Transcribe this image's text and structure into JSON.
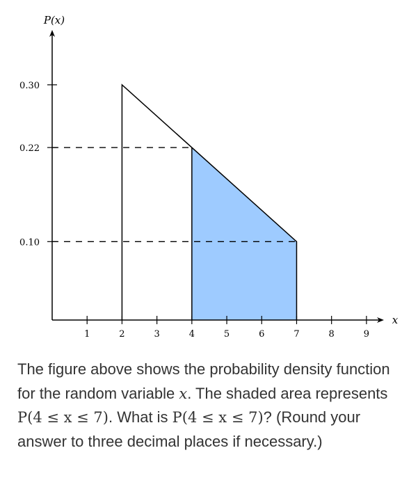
{
  "chart_data": {
    "type": "area",
    "xlabel": "x",
    "ylabel": "P(x)",
    "x_ticks": [
      1,
      2,
      3,
      4,
      5,
      6,
      7,
      8,
      9
    ],
    "y_ticks": [
      0.1,
      0.22,
      0.3
    ],
    "y_tick_labels": [
      "0.10",
      "0.22",
      "0.30"
    ],
    "xlim": [
      0,
      9.5
    ],
    "ylim": [
      0,
      0.37
    ],
    "density_outline": [
      {
        "x": 2,
        "y": 0
      },
      {
        "x": 2,
        "y": 0.3
      },
      {
        "x": 7,
        "y": 0.1
      },
      {
        "x": 7,
        "y": 0
      }
    ],
    "shaded_region": {
      "x_from": 4,
      "x_to": 7,
      "points": [
        {
          "x": 4,
          "y": 0.22
        },
        {
          "x": 7,
          "y": 0.1
        }
      ]
    },
    "reference_lines": [
      {
        "y": 0.22,
        "x_to": 4
      },
      {
        "y": 0.1,
        "x_to": 7
      }
    ],
    "grid": false,
    "colors": {
      "shade": "#9ecbff",
      "line": "#000000"
    }
  },
  "question": {
    "text_1": "The figure above shows the probability density function for the random variable ",
    "var_x": "x",
    "text_2": ". The shaded area represents ",
    "prob_1": "P(4 ≤ x ≤ 7)",
    "text_3": ". What is ",
    "prob_2": "P(4 ≤ x ≤ 7)",
    "text_4": "? (Round your answer to three decimal places if necessary.)"
  }
}
